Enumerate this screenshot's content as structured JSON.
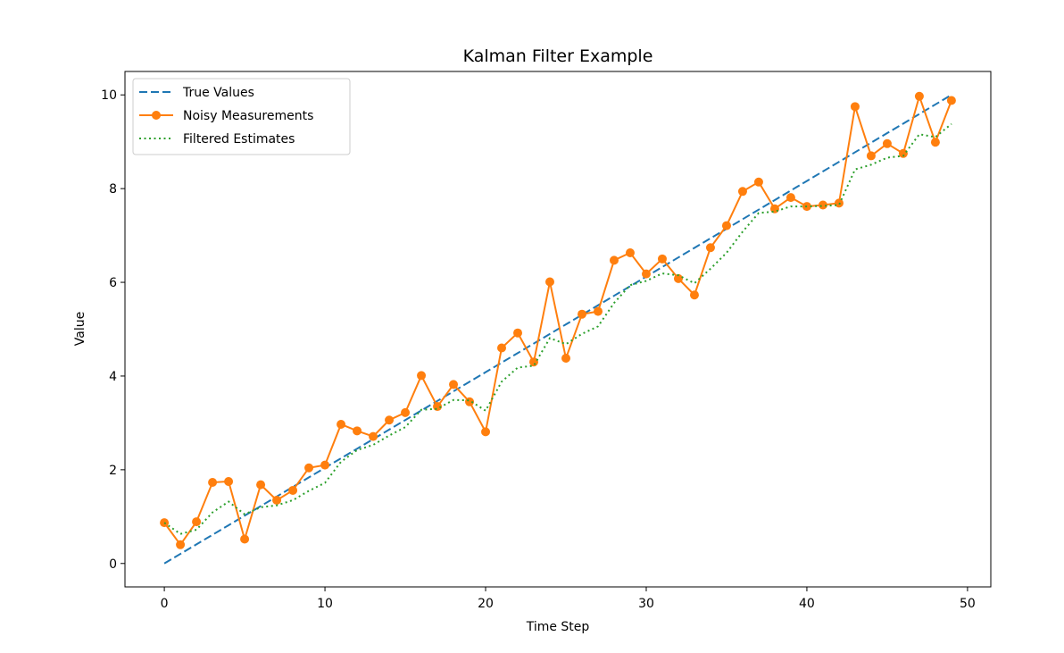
{
  "chart_data": {
    "type": "line",
    "title": "Kalman Filter Example",
    "xlabel": "Time Step",
    "ylabel": "Value",
    "xlim": [
      -2.45,
      51.45
    ],
    "ylim": [
      -0.5,
      10.5
    ],
    "xticks": [
      0,
      10,
      20,
      30,
      40,
      50
    ],
    "yticks": [
      0,
      2,
      4,
      6,
      8,
      10
    ],
    "grid": false,
    "legend_position": "upper left",
    "x": [
      0,
      1,
      2,
      3,
      4,
      5,
      6,
      7,
      8,
      9,
      10,
      11,
      12,
      13,
      14,
      15,
      16,
      17,
      18,
      19,
      20,
      21,
      22,
      23,
      24,
      25,
      26,
      27,
      28,
      29,
      30,
      31,
      32,
      33,
      34,
      35,
      36,
      37,
      38,
      39,
      40,
      41,
      42,
      43,
      44,
      45,
      46,
      47,
      48,
      49
    ],
    "series": [
      {
        "name": "True Values",
        "style": "dashed",
        "color": "#1f77b4",
        "values": [
          0.0,
          0.204,
          0.408,
          0.612,
          0.816,
          1.02,
          1.224,
          1.429,
          1.633,
          1.837,
          2.041,
          2.245,
          2.449,
          2.653,
          2.857,
          3.061,
          3.265,
          3.469,
          3.673,
          3.878,
          4.082,
          4.286,
          4.49,
          4.694,
          4.898,
          5.102,
          5.306,
          5.51,
          5.714,
          5.918,
          6.122,
          6.327,
          6.531,
          6.735,
          6.939,
          7.143,
          7.347,
          7.551,
          7.755,
          7.959,
          8.163,
          8.367,
          8.571,
          8.776,
          8.98,
          9.184,
          9.388,
          9.592,
          9.796,
          10.0
        ]
      },
      {
        "name": "Noisy Measurements",
        "style": "solid-markers",
        "color": "#ff7f0e",
        "values": [
          0.87,
          0.4,
          0.89,
          1.73,
          1.75,
          0.52,
          1.68,
          1.35,
          1.56,
          2.04,
          2.1,
          2.97,
          2.83,
          2.71,
          3.06,
          3.22,
          4.01,
          3.35,
          3.82,
          3.45,
          2.81,
          4.6,
          4.92,
          4.3,
          6.01,
          4.38,
          5.32,
          5.38,
          6.47,
          6.63,
          6.18,
          6.5,
          6.08,
          5.73,
          6.74,
          7.21,
          7.94,
          8.14,
          7.57,
          7.81,
          7.62,
          7.65,
          7.69,
          9.75,
          8.7,
          8.96,
          8.75,
          9.97,
          8.99,
          9.88
        ]
      },
      {
        "name": "Filtered Estimates",
        "style": "dotted",
        "color": "#2ca02c",
        "values": [
          0.87,
          0.63,
          0.72,
          1.09,
          1.32,
          1.05,
          1.2,
          1.24,
          1.35,
          1.55,
          1.72,
          2.17,
          2.42,
          2.53,
          2.73,
          2.91,
          3.28,
          3.3,
          3.49,
          3.48,
          3.26,
          3.88,
          4.18,
          4.22,
          4.81,
          4.68,
          4.9,
          5.06,
          5.56,
          5.94,
          6.03,
          6.19,
          6.15,
          5.98,
          6.29,
          6.63,
          7.08,
          7.48,
          7.51,
          7.62,
          7.62,
          7.63,
          7.65,
          8.41,
          8.51,
          8.66,
          8.7,
          9.16,
          9.1,
          9.38
        ]
      }
    ]
  }
}
